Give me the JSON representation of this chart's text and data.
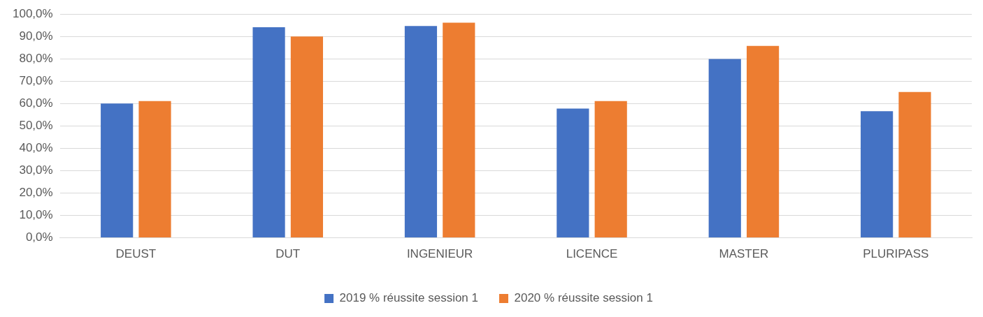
{
  "chart_data": {
    "type": "bar",
    "categories": [
      "DEUST",
      "DUT",
      "INGENIEUR",
      "LICENCE",
      "MASTER",
      "PLURIPASS"
    ],
    "series": [
      {
        "name": "2019 % réussite session 1",
        "color": "#4472c4",
        "values": [
          60.0,
          94.1,
          94.7,
          57.8,
          79.9,
          56.6
        ]
      },
      {
        "name": "2020 % réussite session 1",
        "color": "#ed7d31",
        "values": [
          61.1,
          90.0,
          96.2,
          61.1,
          85.8,
          65.2
        ]
      }
    ],
    "ylim": [
      0,
      100
    ],
    "yticks": [
      {
        "value": 0,
        "label": "0,0%"
      },
      {
        "value": 10,
        "label": "10,0%"
      },
      {
        "value": 20,
        "label": "20,0%"
      },
      {
        "value": 30,
        "label": "30,0%"
      },
      {
        "value": 40,
        "label": "40,0%"
      },
      {
        "value": 50,
        "label": "50,0%"
      },
      {
        "value": 60,
        "label": "60,0%"
      },
      {
        "value": 70,
        "label": "70,0%"
      },
      {
        "value": 80,
        "label": "80,0%"
      },
      {
        "value": 90,
        "label": "90,0%"
      },
      {
        "value": 100,
        "label": "100,0%"
      }
    ],
    "grid": "y",
    "legend": "bottom"
  }
}
